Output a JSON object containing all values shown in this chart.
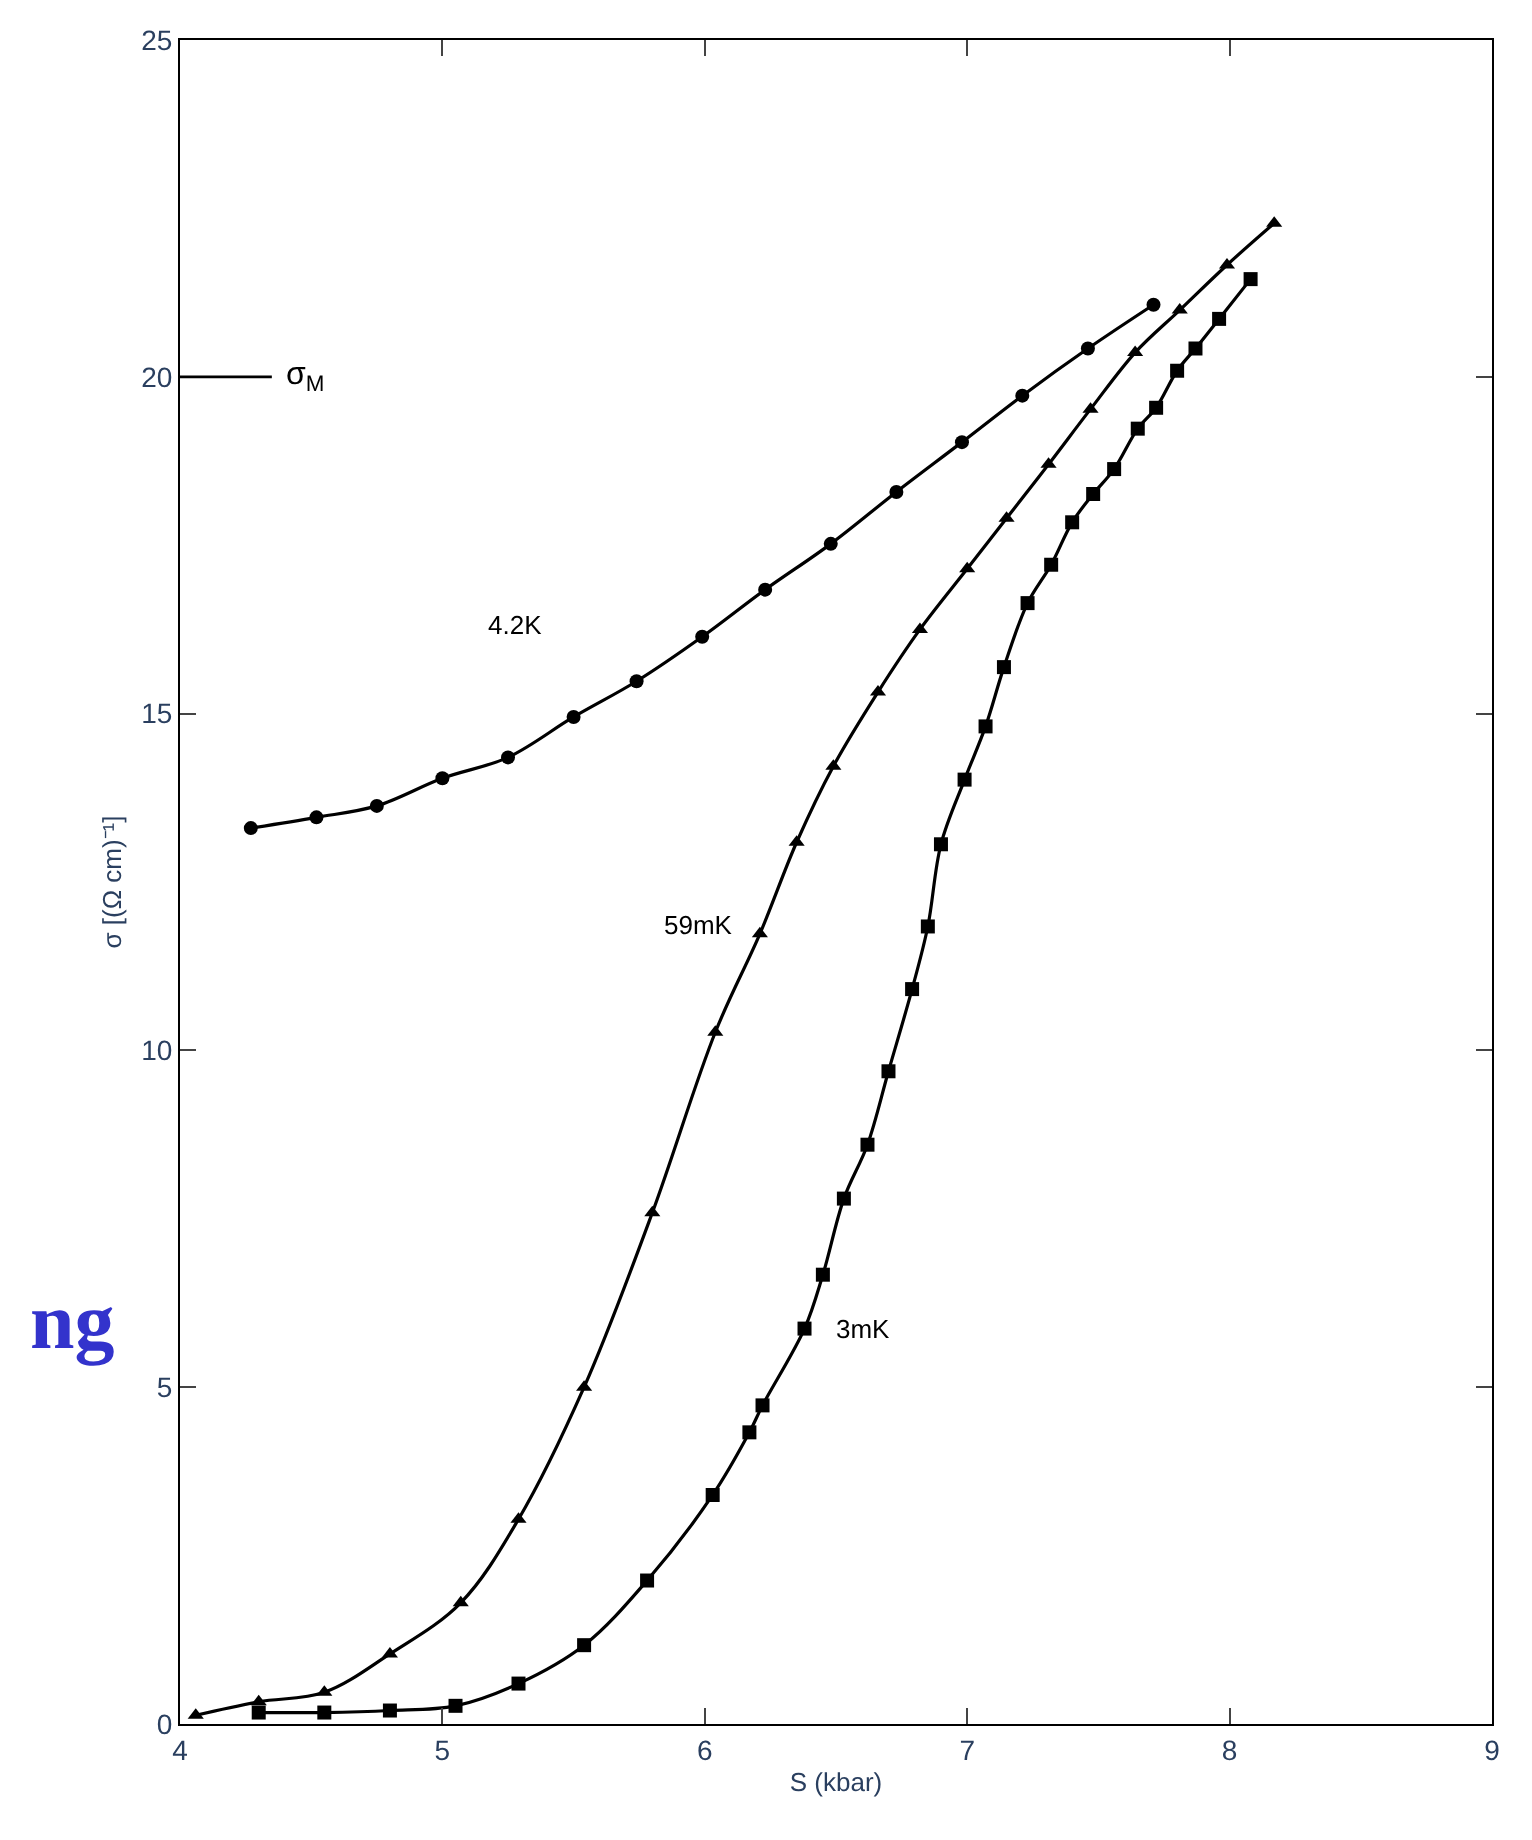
{
  "chart_data": {
    "type": "line",
    "xlabel": "S (kbar)",
    "ylabel": "σ [(Ω cm)⁻¹]",
    "xlim": [
      4,
      9
    ],
    "xticks": [
      4,
      5,
      6,
      7,
      8,
      9
    ],
    "ylim": [
      0,
      25
    ],
    "yticks": [
      0,
      5,
      10,
      15,
      20,
      25
    ],
    "legend": false,
    "line_style": "solid",
    "ref_lines": [
      {
        "axis": "y",
        "value": 20,
        "label": "σ$_{M}$"
      }
    ],
    "annotations": [
      "ng"
    ],
    "series": [
      {
        "name": "4.2K",
        "color": "#000000",
        "marker": "circle",
        "x": [
          4.27,
          4.52,
          4.75,
          5.0,
          5.25,
          5.5,
          5.74,
          5.99,
          6.23,
          6.48,
          6.73,
          6.98,
          7.21,
          7.46,
          7.71
        ],
        "values": [
          13.3,
          13.46,
          13.63,
          14.04,
          14.35,
          14.95,
          15.48,
          16.14,
          16.84,
          17.52,
          18.29,
          19.03,
          19.72,
          20.42,
          21.07
        ]
      },
      {
        "name": "59mK",
        "color": "#000000",
        "marker": "triangle",
        "x": [
          4.06,
          4.3,
          4.55,
          4.8,
          5.07,
          5.29,
          5.54,
          5.8,
          6.04,
          6.21,
          6.35,
          6.49,
          6.66,
          6.82,
          7.0,
          7.15,
          7.31,
          7.47,
          7.64,
          7.81,
          7.99,
          8.17
        ],
        "values": [
          0.13,
          0.33,
          0.47,
          1.04,
          1.8,
          3.04,
          5.0,
          7.59,
          10.27,
          11.73,
          13.09,
          14.22,
          15.32,
          16.25,
          17.15,
          17.9,
          18.7,
          19.52,
          20.36,
          20.99,
          21.66,
          22.28
        ]
      },
      {
        "name": "3mK",
        "color": "#000000",
        "marker": "square",
        "x": [
          4.3,
          4.55,
          4.8,
          5.05,
          5.29,
          5.54,
          5.78,
          6.03,
          6.17,
          6.22,
          6.38,
          6.45,
          6.53,
          6.62,
          6.7,
          6.79,
          6.85,
          6.9,
          6.99,
          7.07,
          7.14,
          7.23,
          7.32,
          7.4,
          7.48,
          7.56,
          7.65,
          7.72,
          7.8,
          7.87,
          7.96,
          8.08
        ],
        "values": [
          0.17,
          0.17,
          0.2,
          0.27,
          0.6,
          1.17,
          2.13,
          3.4,
          4.33,
          4.73,
          5.87,
          6.67,
          7.8,
          8.6,
          9.69,
          10.91,
          11.84,
          13.06,
          14.02,
          14.81,
          15.69,
          16.64,
          17.21,
          17.84,
          18.26,
          18.63,
          19.23,
          19.54,
          20.09,
          20.42,
          20.86,
          21.45
        ]
      }
    ]
  }
}
